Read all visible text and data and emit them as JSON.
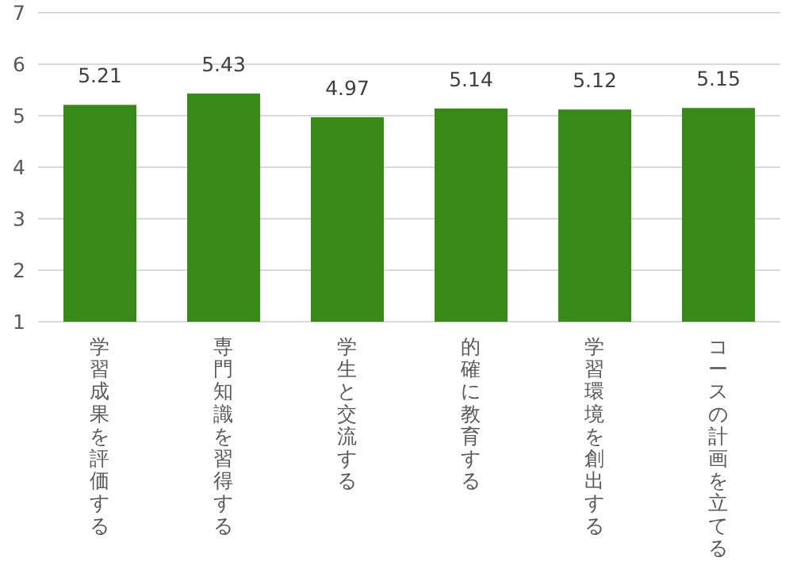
{
  "chart_data": {
    "type": "bar",
    "categories": [
      "学習成果を評価する",
      "専門知識を習得する",
      "学生と交流する",
      "的確に教育する",
      "学習環境を創出する",
      "コースの計画を立てる"
    ],
    "values": [
      5.21,
      5.43,
      4.97,
      5.14,
      5.12,
      5.15
    ],
    "color": "#378a17",
    "ylim": [
      1,
      7
    ],
    "yticks": [
      1,
      2,
      3,
      4,
      5,
      6,
      7
    ],
    "grid": "y",
    "data_labels": true
  }
}
